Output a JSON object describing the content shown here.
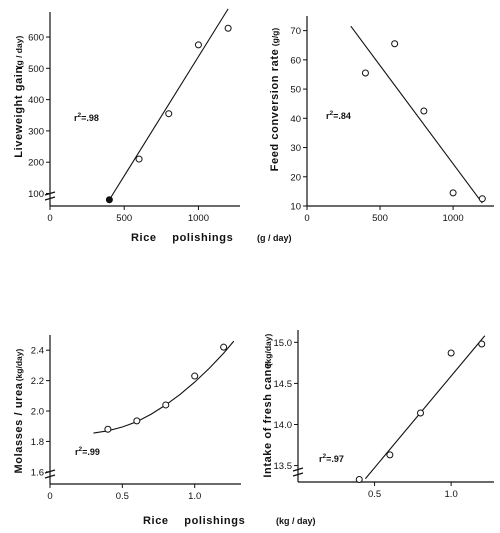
{
  "chart_data": [
    {
      "id": "liveweight",
      "type": "scatter",
      "ylabel": "Liveweight gain",
      "yunit": "(g / day)",
      "xlim": [
        0,
        1280
      ],
      "ylim": [
        60,
        680
      ],
      "xticks": [
        0,
        500,
        1000
      ],
      "yticks": [
        100,
        200,
        300,
        400,
        500,
        600
      ],
      "axis_break": true,
      "points": [
        {
          "x": 400,
          "y": 80,
          "filled": true
        },
        {
          "x": 600,
          "y": 210,
          "filled": false
        },
        {
          "x": 800,
          "y": 355,
          "filled": false
        },
        {
          "x": 1000,
          "y": 575,
          "filled": false
        },
        {
          "x": 1200,
          "y": 628,
          "filled": false
        }
      ],
      "fit_line": [
        [
          400,
          80
        ],
        [
          1200,
          690
        ]
      ],
      "annotation": {
        "prefix": "r",
        "sup": "2",
        "suffix": "=.98"
      }
    },
    {
      "id": "feed_conversion",
      "type": "scatter",
      "ylabel": "Feed conversion rate",
      "yunit": "(g/g)",
      "xlim": [
        0,
        1280
      ],
      "ylim": [
        10,
        75
      ],
      "xticks": [
        0,
        500,
        1000
      ],
      "yticks": [
        10,
        20,
        30,
        40,
        50,
        60,
        70
      ],
      "points": [
        {
          "x": 400,
          "y": 55.5,
          "filled": false
        },
        {
          "x": 600,
          "y": 65.5,
          "filled": false
        },
        {
          "x": 800,
          "y": 42.5,
          "filled": false
        },
        {
          "x": 1000,
          "y": 14.5,
          "filled": false
        },
        {
          "x": 1200,
          "y": 12.5,
          "filled": false
        }
      ],
      "fit_line": [
        [
          300,
          71.5
        ],
        [
          1200,
          11
        ]
      ],
      "annotation": {
        "prefix": "r",
        "sup": "2",
        "suffix": "=.84"
      }
    },
    {
      "id": "molasses_urea",
      "type": "scatter",
      "ylabel": "Molasses / urea",
      "yunit": "(kg/day)",
      "xlim": [
        0,
        1.32
      ],
      "ylim": [
        1.52,
        2.5
      ],
      "xticks": [
        0,
        0.5,
        1.0
      ],
      "yticks": [
        1.6,
        1.8,
        2.0,
        2.2,
        2.4
      ],
      "axis_break": true,
      "points": [
        {
          "x": 0.4,
          "y": 1.88,
          "filled": false
        },
        {
          "x": 0.6,
          "y": 1.935,
          "filled": false
        },
        {
          "x": 0.8,
          "y": 2.04,
          "filled": false
        },
        {
          "x": 1.0,
          "y": 2.23,
          "filled": false
        },
        {
          "x": 1.2,
          "y": 2.42,
          "filled": false
        }
      ],
      "fit_curve": [
        [
          0.3,
          1.855
        ],
        [
          0.4,
          1.87
        ],
        [
          0.5,
          1.895
        ],
        [
          0.6,
          1.93
        ],
        [
          0.7,
          1.98
        ],
        [
          0.8,
          2.04
        ],
        [
          0.9,
          2.11
        ],
        [
          1.0,
          2.19
        ],
        [
          1.1,
          2.28
        ],
        [
          1.2,
          2.38
        ],
        [
          1.27,
          2.46
        ]
      ],
      "annotation": {
        "prefix": "r",
        "sup": "2",
        "suffix": "=.99"
      }
    },
    {
      "id": "fresh_cane",
      "type": "scatter",
      "ylabel": "Intake of fresh cane",
      "yunit": "(kg/day)",
      "xlim": [
        0,
        1.28
      ],
      "ylim": [
        13.3,
        15.15
      ],
      "xticks": [
        0.5,
        1.0
      ],
      "yticks": [
        13.5,
        14.0,
        14.5,
        15.0
      ],
      "axis_break": true,
      "points": [
        {
          "x": 0.4,
          "y": 13.33,
          "filled": false
        },
        {
          "x": 0.6,
          "y": 13.63,
          "filled": false
        },
        {
          "x": 0.8,
          "y": 14.14,
          "filled": false
        },
        {
          "x": 1.0,
          "y": 14.87,
          "filled": false
        },
        {
          "x": 1.2,
          "y": 14.98,
          "filled": false
        }
      ],
      "fit_line": [
        [
          0.44,
          13.34
        ],
        [
          1.22,
          15.08
        ]
      ],
      "annotation": {
        "prefix": "r",
        "sup": "2",
        "suffix": "=.97"
      }
    }
  ],
  "shared_xlabel_top": {
    "label": "Rice polishings",
    "unit": "(g / day)"
  },
  "shared_xlabel_bottom": {
    "label": "Rice polishings",
    "unit": "(kg / day)"
  }
}
